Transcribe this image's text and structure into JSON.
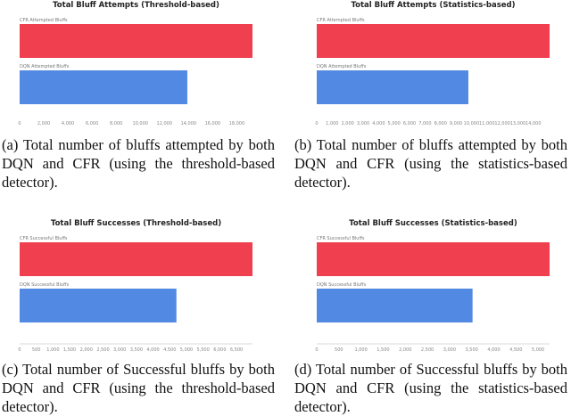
{
  "colors": {
    "cfr": "#f04050",
    "dqn": "#5289e3"
  },
  "chart_data": [
    {
      "type": "bar",
      "orientation": "horizontal",
      "title": "Total Bluff Attempts (Threshold-based)",
      "categories": [
        "CFR Attempted Bluffs",
        "DQN Attempted Bluffs"
      ],
      "values": [
        19300,
        13900
      ],
      "xlim": [
        0,
        19300
      ],
      "ticks": [
        0,
        2000,
        4000,
        6000,
        8000,
        10000,
        12000,
        14000,
        16000,
        18000
      ],
      "tick_labels": [
        "0",
        "2,000",
        "4,000",
        "6,000",
        "8,000",
        "10,000",
        "12,000",
        "14,000",
        "16,000",
        "18,000"
      ]
    },
    {
      "type": "bar",
      "orientation": "horizontal",
      "title": "Total Bluff Attempts (Statistics-based)",
      "categories": [
        "CFR Attempted Bluffs",
        "DQN Attempted Bluffs"
      ],
      "values": [
        15050,
        9800
      ],
      "xlim": [
        0,
        15050
      ],
      "ticks": [
        0,
        1000,
        2000,
        3000,
        4000,
        5000,
        6000,
        7000,
        8000,
        9000,
        10000,
        11000,
        12000,
        13000,
        14000
      ],
      "tick_labels": [
        "0",
        "1,000",
        "2,000",
        "3,000",
        "4,000",
        "5,000",
        "6,000",
        "7,000",
        "8,000",
        "9,000",
        "10,000",
        "11,000",
        "12,000",
        "13,000",
        "14,000"
      ]
    },
    {
      "type": "bar",
      "orientation": "horizontal",
      "title": "Total Bluff Successes (Threshold-based)",
      "categories": [
        "CFR Successful Bluffs",
        "DQN Successful Bluffs"
      ],
      "values": [
        6980,
        4700
      ],
      "xlim": [
        0,
        6980
      ],
      "ticks": [
        0,
        500,
        1000,
        1500,
        2000,
        2500,
        3000,
        3500,
        4000,
        4500,
        5000,
        5500,
        6000,
        6500
      ],
      "tick_labels": [
        "0",
        "500",
        "1,000",
        "1,500",
        "2,000",
        "2,500",
        "3,000",
        "3,500",
        "4,000",
        "4,500",
        "5,000",
        "5,500",
        "6,000",
        "6,500"
      ]
    },
    {
      "type": "bar",
      "orientation": "horizontal",
      "title": "Total Bluff Successes (Statistics-based)",
      "categories": [
        "CFR Successful Bluffs",
        "DQN Successful Bluffs"
      ],
      "values": [
        5260,
        3520
      ],
      "xlim": [
        0,
        5260
      ],
      "ticks": [
        0,
        500,
        1000,
        1500,
        2000,
        2500,
        3000,
        3500,
        4000,
        4500,
        5000
      ],
      "tick_labels": [
        "0",
        "500",
        "1,000",
        "1,500",
        "2,000",
        "2,500",
        "3,000",
        "3,500",
        "4,000",
        "4,500",
        "5,000"
      ]
    }
  ],
  "captions": [
    "(a) Total number of bluffs attempted by both DQN and CFR (using the threshold-based detector).",
    "(b) Total number of bluffs attempted by both DQN and CFR (using the statistics-based detector).",
    "(c) Total number of Successful bluffs by both DQN and CFR (using the threshold-based detector).",
    "(d) Total number of Successful bluffs by both DQN and CFR (using the statistics-based detector)."
  ]
}
